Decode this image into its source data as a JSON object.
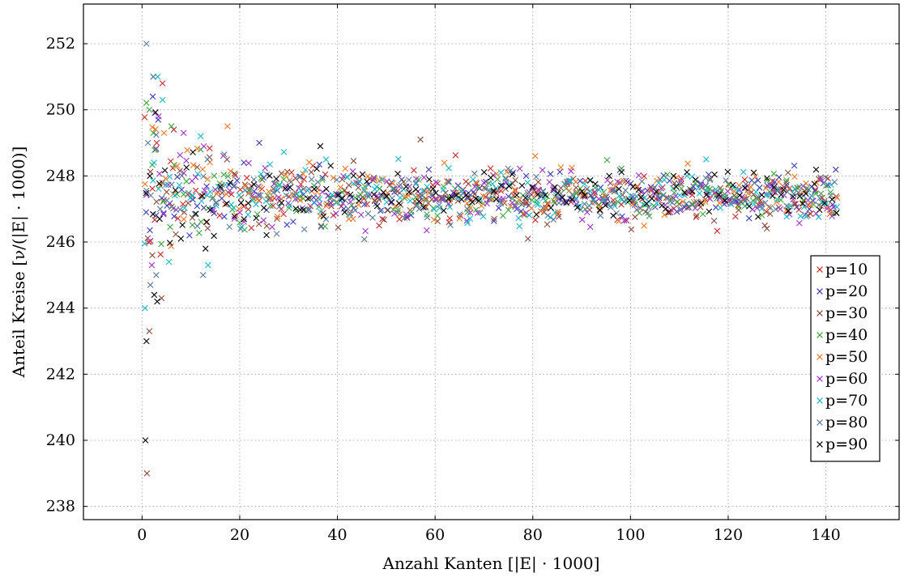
{
  "chart_data": {
    "type": "scatter",
    "title": "",
    "xlabel": "Anzahl Kanten [|E| · 1000]",
    "ylabel": "Anteil Kreise [ν/(|E| · 1000)]",
    "xlim": [
      -12,
      155
    ],
    "ylim": [
      237.6,
      253.2
    ],
    "xticks": [
      0,
      20,
      40,
      60,
      80,
      100,
      120,
      140
    ],
    "yticks": [
      238,
      240,
      242,
      244,
      246,
      248,
      250,
      252
    ],
    "grid": true,
    "grid_style": "dotted",
    "legend_position": "bottom-right",
    "marker": "x",
    "x_range_observed": [
      0.5,
      142.5
    ],
    "sampling_note_points_per_series": 150,
    "series": [
      {
        "name": "p=10",
        "color": "#cc2a2a",
        "outliers": [
          [
            4.2,
            250.8
          ],
          [
            1.3,
            246.0
          ],
          [
            3.0,
            249.0
          ],
          [
            6.5,
            249.4
          ]
        ]
      },
      {
        "name": "p=20",
        "color": "#3b3bb8",
        "outliers": [
          [
            2.2,
            250.4
          ],
          [
            3.3,
            249.7
          ],
          [
            5.1,
            247.1
          ],
          [
            24.0,
            249.0
          ]
        ]
      },
      {
        "name": "p=30",
        "color": "#8b4a3a",
        "outliers": [
          [
            1.0,
            239.0
          ],
          [
            1.5,
            243.3
          ],
          [
            2.1,
            245.6
          ],
          [
            4.0,
            244.3
          ],
          [
            57.0,
            249.1
          ],
          [
            79.0,
            246.1
          ],
          [
            127.5,
            246.5
          ]
        ]
      },
      {
        "name": "p=40",
        "color": "#3aa83a",
        "outliers": [
          [
            1.5,
            250.0
          ],
          [
            2.3,
            249.3
          ],
          [
            2.8,
            248.8
          ],
          [
            6.0,
            249.5
          ],
          [
            12.0,
            248.8
          ]
        ]
      },
      {
        "name": "p=50",
        "color": "#f07820",
        "outliers": [
          [
            1.6,
            246.0
          ],
          [
            4.5,
            249.3
          ],
          [
            17.5,
            249.5
          ],
          [
            80.5,
            248.6
          ]
        ]
      },
      {
        "name": "p=60",
        "color": "#a032c8",
        "outliers": [
          [
            2.0,
            245.3
          ],
          [
            2.6,
            249.9
          ],
          [
            3.4,
            249.8
          ],
          [
            8.5,
            249.3
          ]
        ]
      },
      {
        "name": "p=70",
        "color": "#18b8c8",
        "outliers": [
          [
            0.6,
            244.0
          ],
          [
            2.3,
            251.0
          ],
          [
            3.2,
            251.0
          ],
          [
            4.2,
            250.3
          ],
          [
            5.5,
            245.4
          ],
          [
            12.0,
            249.2
          ],
          [
            13.5,
            245.3
          ],
          [
            115.5,
            248.5
          ]
        ]
      },
      {
        "name": "p=80",
        "color": "#5a7a98",
        "outliers": [
          [
            0.9,
            252.0
          ],
          [
            1.2,
            249.0
          ],
          [
            1.7,
            244.7
          ],
          [
            2.3,
            251.0
          ],
          [
            2.9,
            245.0
          ],
          [
            12.5,
            245.0
          ]
        ]
      },
      {
        "name": "p=90",
        "color": "#000000",
        "outliers": [
          [
            0.7,
            240.0
          ],
          [
            0.9,
            243.0
          ],
          [
            1.6,
            248.0
          ],
          [
            2.5,
            244.4
          ],
          [
            3.1,
            244.2
          ],
          [
            3.6,
            246.7
          ],
          [
            13.0,
            245.8
          ],
          [
            36.5,
            248.9
          ]
        ]
      }
    ]
  }
}
